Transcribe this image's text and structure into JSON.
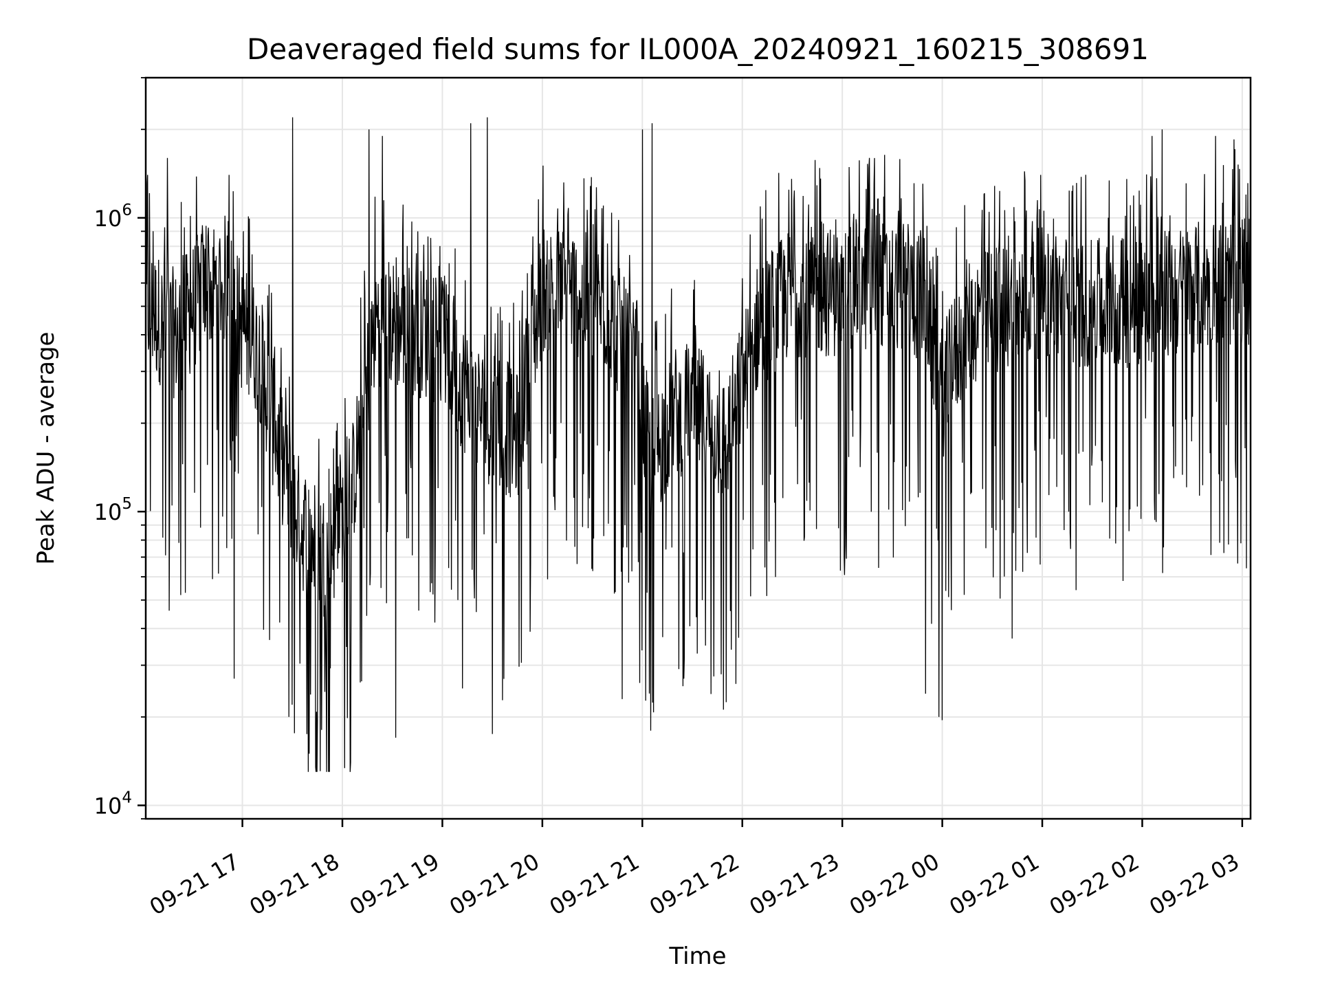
{
  "chart_data": {
    "type": "line",
    "title": "Deaveraged field sums for IL000A_20240921_160215_308691",
    "xlabel": "Time",
    "ylabel": "Peak ADU - average",
    "yscale": "log",
    "ylim": [
      9000,
      3000000
    ],
    "xlim": [
      "2024-09-21 16:02",
      "2024-09-22 03:05"
    ],
    "grid": true,
    "line_color": "#000000",
    "grid_color": "#e6e6e6",
    "x_ticks": [
      "09-21 17",
      "09-21 18",
      "09-21 19",
      "09-21 20",
      "09-21 21",
      "09-21 22",
      "09-21 23",
      "09-22 00",
      "09-22 01",
      "09-22 02",
      "09-22 03"
    ],
    "x_tick_times": [
      "2024-09-21 17:00",
      "2024-09-21 18:00",
      "2024-09-21 19:00",
      "2024-09-21 20:00",
      "2024-09-21 21:00",
      "2024-09-21 22:00",
      "2024-09-21 23:00",
      "2024-09-22 00:00",
      "2024-09-22 01:00",
      "2024-09-22 02:00",
      "2024-09-22 03:00"
    ],
    "y_ticks": [
      {
        "value": 10000,
        "base": "10",
        "exp": "4"
      },
      {
        "value": 100000,
        "base": "10",
        "exp": "5"
      },
      {
        "value": 1000000,
        "base": "10",
        "exp": "6"
      }
    ],
    "series": [
      {
        "trend": {
          "x": [
            "2024-09-21 16:02",
            "2024-09-21 16:20",
            "2024-09-21 16:35",
            "2024-09-21 16:50",
            "2024-09-21 17:00",
            "2024-09-21 17:10",
            "2024-09-21 17:20",
            "2024-09-21 17:35",
            "2024-09-21 17:50",
            "2024-09-21 18:05",
            "2024-09-21 18:20",
            "2024-09-21 18:40",
            "2024-09-21 19:00",
            "2024-09-21 19:15",
            "2024-09-21 19:30",
            "2024-09-21 19:45",
            "2024-09-21 20:00",
            "2024-09-21 20:20",
            "2024-09-21 20:40",
            "2024-09-21 20:55",
            "2024-09-21 21:05",
            "2024-09-21 21:20",
            "2024-09-21 21:35",
            "2024-09-21 21:50",
            "2024-09-21 22:10",
            "2024-09-21 22:30",
            "2024-09-21 23:00",
            "2024-09-21 23:30",
            "2024-09-21 23:50",
            "2024-09-22 00:00",
            "2024-09-22 00:15",
            "2024-09-22 00:40",
            "2024-09-22 01:00",
            "2024-09-22 01:30",
            "2024-09-22 02:00",
            "2024-09-22 02:30",
            "2024-09-22 03:05"
          ],
          "y": [
            500000,
            400000,
            550000,
            620000,
            420000,
            350000,
            180000,
            90000,
            70000,
            110000,
            450000,
            420000,
            380000,
            250000,
            200000,
            180000,
            580000,
            560000,
            480000,
            320000,
            150000,
            220000,
            220000,
            170000,
            440000,
            560000,
            560000,
            600000,
            520000,
            250000,
            440000,
            500000,
            560000,
            500000,
            520000,
            580000,
            620000
          ]
        },
        "min_dips": [
          {
            "x": "2024-09-21 16:23",
            "y": 52000
          },
          {
            "x": "2024-09-21 16:52",
            "y": 33000
          },
          {
            "x": "2024-09-21 16:55",
            "y": 27000
          },
          {
            "x": "2024-09-21 17:28",
            "y": 20000
          },
          {
            "x": "2024-09-21 17:40",
            "y": 15000
          },
          {
            "x": "2024-09-21 17:44",
            "y": 13500
          },
          {
            "x": "2024-09-21 18:05",
            "y": 14000
          },
          {
            "x": "2024-09-21 18:32",
            "y": 17000
          },
          {
            "x": "2024-09-21 19:12",
            "y": 25000
          },
          {
            "x": "2024-09-21 19:27",
            "y": 12000
          },
          {
            "x": "2024-09-21 19:30",
            "y": 17500
          },
          {
            "x": "2024-09-21 20:48",
            "y": 23000
          },
          {
            "x": "2024-09-21 21:25",
            "y": 27000
          },
          {
            "x": "2024-09-21 21:38",
            "y": 35000
          },
          {
            "x": "2024-09-21 23:50",
            "y": 24000
          },
          {
            "x": "2024-09-21 23:58",
            "y": 20000
          },
          {
            "x": "2024-09-22 00:00",
            "y": 19500
          },
          {
            "x": "2024-09-22 00:42",
            "y": 37000
          }
        ],
        "max_peaks": [
          {
            "x": "2024-09-21 16:03",
            "y": 1400000
          },
          {
            "x": "2024-09-21 16:15",
            "y": 1600000
          },
          {
            "x": "2024-09-21 16:52",
            "y": 1400000
          },
          {
            "x": "2024-09-21 17:30",
            "y": 2200000
          },
          {
            "x": "2024-09-21 18:16",
            "y": 2000000
          },
          {
            "x": "2024-09-21 18:24",
            "y": 1900000
          },
          {
            "x": "2024-09-21 19:17",
            "y": 2100000
          },
          {
            "x": "2024-09-21 19:27",
            "y": 2200000
          },
          {
            "x": "2024-09-21 21:00",
            "y": 2000000
          },
          {
            "x": "2024-09-21 21:06",
            "y": 2100000
          },
          {
            "x": "2024-09-22 02:06",
            "y": 1900000
          },
          {
            "x": "2024-09-22 02:12",
            "y": 2000000
          },
          {
            "x": "2024-09-22 02:44",
            "y": 1900000
          },
          {
            "x": "2024-09-22 02:55",
            "y": 1850000
          }
        ]
      }
    ]
  }
}
